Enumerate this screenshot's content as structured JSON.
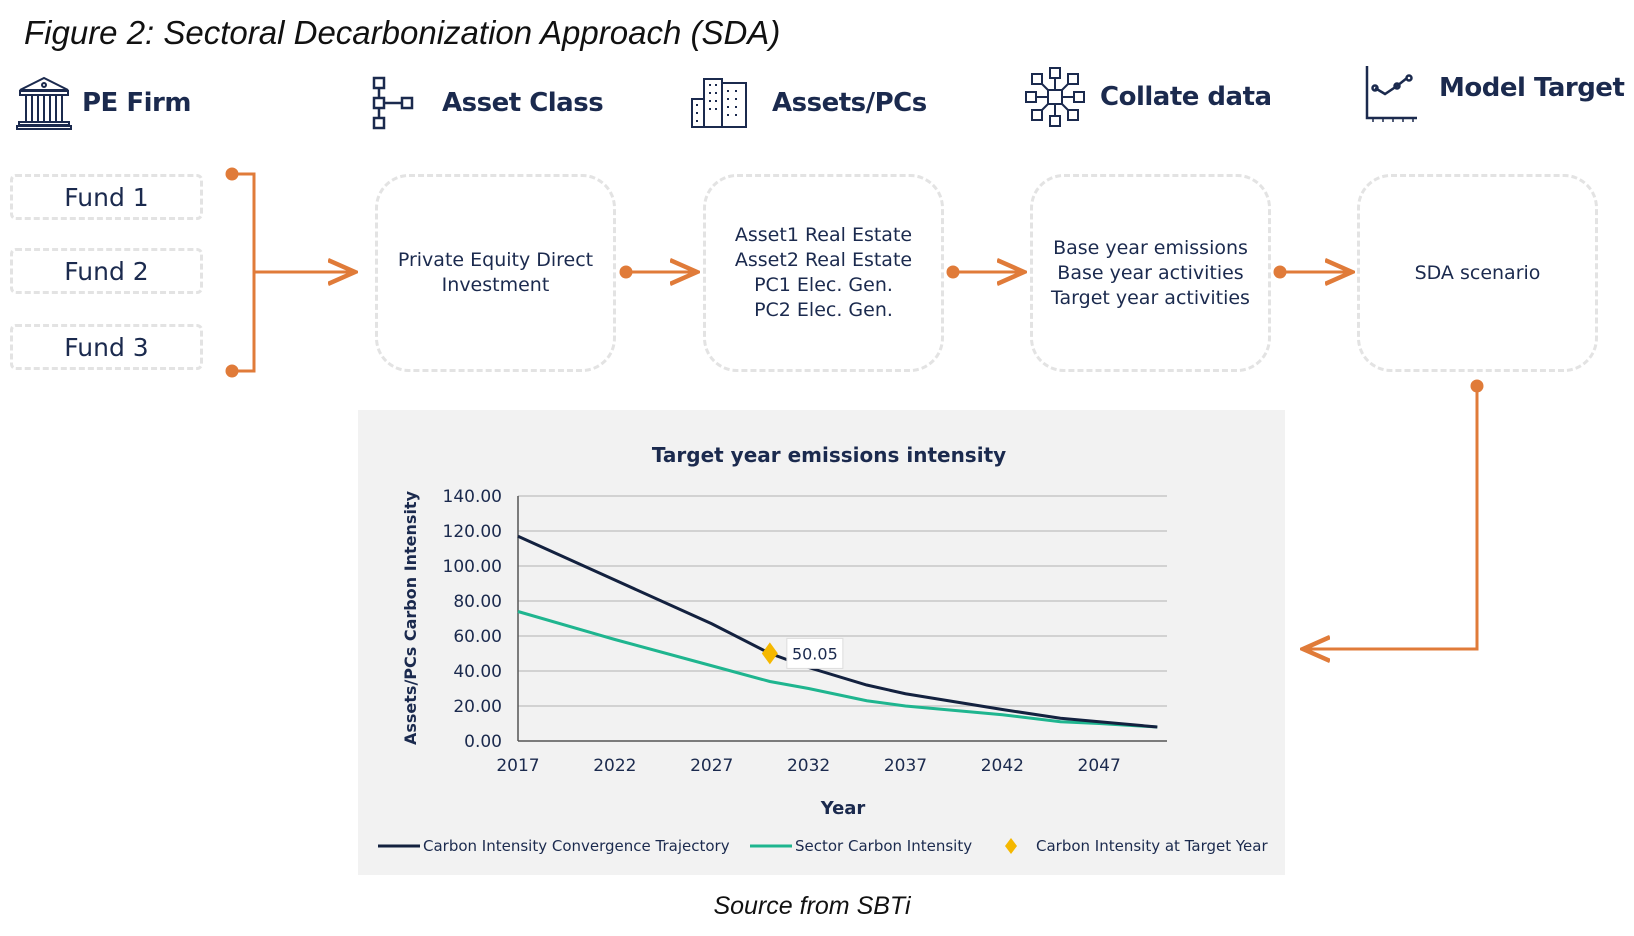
{
  "figure_title": "Figure 2: Sectoral Decarbonization Approach (SDA)",
  "header": [
    {
      "label": "PE Firm",
      "icon": "bank-icon"
    },
    {
      "label": "Asset Class",
      "icon": "hierarchy-icon"
    },
    {
      "label": "Assets/PCs",
      "icon": "buildings-icon"
    },
    {
      "label": "Collate data",
      "icon": "network-icon"
    },
    {
      "label": "Model Target",
      "icon": "line-chart-icon"
    }
  ],
  "funds": [
    "Fund 1",
    "Fund 2",
    "Fund 3"
  ],
  "boxes": [
    {
      "lines": [
        "Private Equity Direct",
        "Investment"
      ]
    },
    {
      "lines": [
        "Asset1 Real Estate",
        "Asset2 Real Estate",
        "PC1 Elec. Gen.",
        "PC2 Elec. Gen."
      ]
    },
    {
      "lines": [
        "Base year emissions",
        "Base year activities",
        "Target year activities"
      ]
    },
    {
      "lines": [
        "SDA scenario"
      ]
    }
  ],
  "colors": {
    "arrow": "#E07B39",
    "trajectory": "#13213f",
    "sector": "#1fb58f",
    "target": "#f5b800",
    "panel": "#f2f2f2"
  },
  "chart_data": {
    "type": "line",
    "title": "Target year emissions intensity",
    "xlabel": "Year",
    "ylabel": "Assets/PCs Carbon Intensity",
    "xlim": [
      2017,
      2050.5
    ],
    "ylim": [
      0,
      140
    ],
    "x_ticks": [
      "2017",
      "2022",
      "2027",
      "2032",
      "2037",
      "2042",
      "2047"
    ],
    "y_ticks": [
      "0.00",
      "20.00",
      "40.00",
      "60.00",
      "80.00",
      "100.00",
      "120.00",
      "140.00"
    ],
    "grid": true,
    "legend_position": "bottom",
    "x": [
      2017,
      2022,
      2027,
      2030,
      2032,
      2035,
      2037,
      2042,
      2045,
      2047,
      2050
    ],
    "series": [
      {
        "name": "Carbon Intensity Convergence Trajectory",
        "values": [
          117,
          92,
          67,
          50.05,
          42,
          32,
          27,
          18,
          13,
          11,
          8
        ]
      },
      {
        "name": "Sector Carbon Intensity",
        "values": [
          74,
          58,
          43,
          34,
          30,
          23,
          20,
          15,
          11,
          10,
          8
        ]
      }
    ],
    "target_point": {
      "name": "Carbon Intensity at Target Year",
      "x": 2030,
      "y": 50.05,
      "label": "50.05"
    }
  },
  "source": "Source from SBTi"
}
